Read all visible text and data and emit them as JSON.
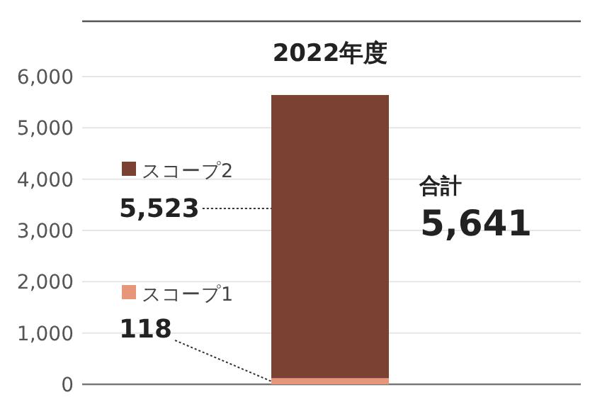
{
  "chart_data": {
    "type": "bar",
    "stacked": true,
    "categories": [
      "2022年度"
    ],
    "series": [
      {
        "name": "スコープ1",
        "color": "#e8967a",
        "values": [
          118
        ],
        "value_labels": [
          "118"
        ]
      },
      {
        "name": "スコープ2",
        "color": "#7b4133",
        "values": [
          5523
        ],
        "value_labels": [
          "5,523"
        ]
      }
    ],
    "totals": [
      "5,641"
    ],
    "annotations": [
      "合計"
    ],
    "ylim": [
      0,
      6000
    ],
    "yticks": [
      {
        "value": 0,
        "label": "0"
      },
      {
        "value": 1000,
        "label": "1,000"
      },
      {
        "value": 2000,
        "label": "2,000"
      },
      {
        "value": 3000,
        "label": "3,000"
      },
      {
        "value": 4000,
        "label": "4,000"
      },
      {
        "value": 5000,
        "label": "5,000"
      },
      {
        "value": 6000,
        "label": "6,000"
      }
    ],
    "grid": "y",
    "legend": "left"
  }
}
